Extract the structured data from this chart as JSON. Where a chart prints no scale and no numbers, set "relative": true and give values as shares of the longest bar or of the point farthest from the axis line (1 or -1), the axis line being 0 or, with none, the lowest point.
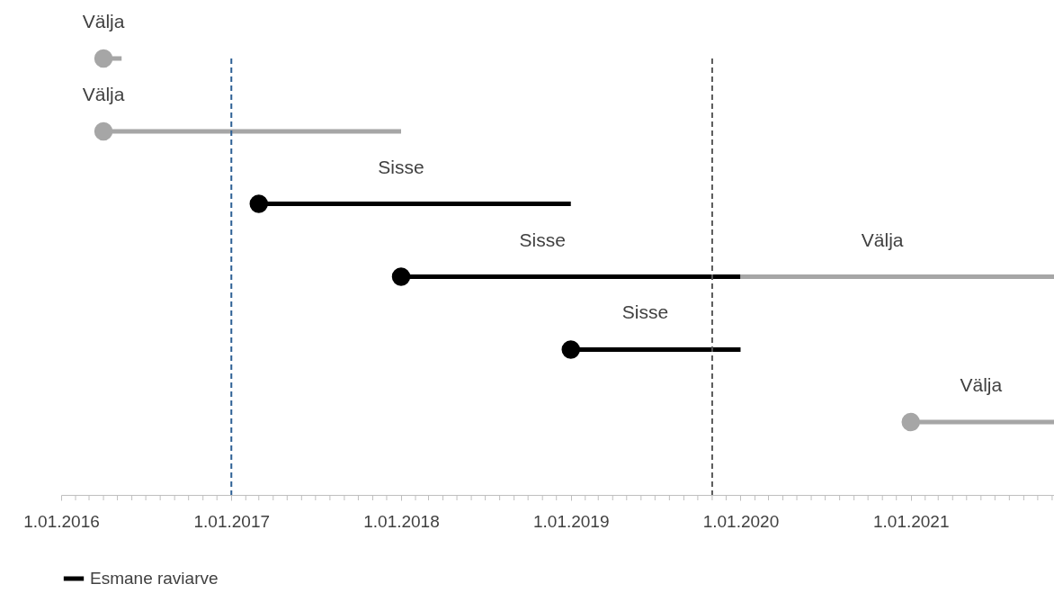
{
  "chart_data": {
    "type": "line",
    "relative": true,
    "xlim": [
      "2016-01-01",
      "2021-11-05"
    ],
    "xticks": [
      {
        "value": "2016-01-01",
        "label": "1.01.2016"
      },
      {
        "value": "2017-01-01",
        "label": "1.01.2017"
      },
      {
        "value": "2018-01-01",
        "label": "1.01.2018"
      },
      {
        "value": "2019-01-01",
        "label": "1.01.2019"
      },
      {
        "value": "2020-01-01",
        "label": "1.01.2020"
      },
      {
        "value": "2021-01-01",
        "label": "1.01.2021"
      },
      {
        "value": "2016-02-01",
        "label": null
      },
      {
        "value": "2016-03-01",
        "label": null
      },
      {
        "value": "2016-04-01",
        "label": null
      },
      {
        "value": "2016-05-01",
        "label": null
      },
      {
        "value": "2016-06-01",
        "label": null
      },
      {
        "value": "2016-07-01",
        "label": null
      },
      {
        "value": "2016-08-01",
        "label": null
      },
      {
        "value": "2016-09-01",
        "label": null
      },
      {
        "value": "2016-10-01",
        "label": null
      },
      {
        "value": "2016-11-01",
        "label": null
      },
      {
        "value": "2016-12-01",
        "label": null
      },
      {
        "value": "2017-02-01",
        "label": null
      },
      {
        "value": "2017-03-01",
        "label": null
      },
      {
        "value": "2017-04-01",
        "label": null
      },
      {
        "value": "2017-05-01",
        "label": null
      },
      {
        "value": "2017-06-01",
        "label": null
      },
      {
        "value": "2017-07-01",
        "label": null
      },
      {
        "value": "2017-08-01",
        "label": null
      },
      {
        "value": "2017-09-01",
        "label": null
      },
      {
        "value": "2017-10-01",
        "label": null
      },
      {
        "value": "2017-11-01",
        "label": null
      },
      {
        "value": "2017-12-01",
        "label": null
      },
      {
        "value": "2018-02-01",
        "label": null
      },
      {
        "value": "2018-03-01",
        "label": null
      },
      {
        "value": "2018-04-01",
        "label": null
      },
      {
        "value": "2018-05-01",
        "label": null
      },
      {
        "value": "2018-06-01",
        "label": null
      },
      {
        "value": "2018-07-01",
        "label": null
      },
      {
        "value": "2018-08-01",
        "label": null
      },
      {
        "value": "2018-09-01",
        "label": null
      },
      {
        "value": "2018-10-01",
        "label": null
      },
      {
        "value": "2018-11-01",
        "label": null
      },
      {
        "value": "2018-12-01",
        "label": null
      },
      {
        "value": "2019-02-01",
        "label": null
      },
      {
        "value": "2019-03-01",
        "label": null
      },
      {
        "value": "2019-04-01",
        "label": null
      },
      {
        "value": "2019-05-01",
        "label": null
      },
      {
        "value": "2019-06-01",
        "label": null
      },
      {
        "value": "2019-07-01",
        "label": null
      },
      {
        "value": "2019-08-01",
        "label": null
      },
      {
        "value": "2019-09-01",
        "label": null
      },
      {
        "value": "2019-10-01",
        "label": null
      },
      {
        "value": "2019-11-01",
        "label": null
      },
      {
        "value": "2019-12-01",
        "label": null
      },
      {
        "value": "2020-02-01",
        "label": null
      },
      {
        "value": "2020-03-01",
        "label": null
      },
      {
        "value": "2020-04-01",
        "label": null
      },
      {
        "value": "2020-05-01",
        "label": null
      },
      {
        "value": "2020-06-01",
        "label": null
      },
      {
        "value": "2020-07-01",
        "label": null
      },
      {
        "value": "2020-08-01",
        "label": null
      },
      {
        "value": "2020-09-01",
        "label": null
      },
      {
        "value": "2020-10-01",
        "label": null
      },
      {
        "value": "2020-11-01",
        "label": null
      },
      {
        "value": "2020-12-01",
        "label": null
      },
      {
        "value": "2021-02-01",
        "label": null
      },
      {
        "value": "2021-03-01",
        "label": null
      },
      {
        "value": "2021-04-01",
        "label": null
      },
      {
        "value": "2021-05-01",
        "label": null
      },
      {
        "value": "2021-06-01",
        "label": null
      },
      {
        "value": "2021-07-01",
        "label": null
      },
      {
        "value": "2021-08-01",
        "label": null
      },
      {
        "value": "2021-09-01",
        "label": null
      },
      {
        "value": "2021-10-01",
        "label": null
      },
      {
        "value": "2021-11-01",
        "label": null
      }
    ],
    "tick_labels": "x",
    "grid": false,
    "legend": "bottom",
    "series": [
      {
        "color": "#a6a6a6",
        "x": [
          "2016-04-01",
          "2016-05-10"
        ],
        "values": [
          1,
          1
        ]
      },
      {
        "color": "#a6a6a6",
        "x": [
          "2016-04-01",
          "2018-01-01"
        ],
        "values": [
          0.833,
          0.833
        ]
      },
      {
        "name": "Esmane raviarve",
        "color": "#000000",
        "x": [
          "2017-03-01",
          "2019-01-01"
        ],
        "values": [
          0.667,
          0.667
        ]
      },
      {
        "color": "#000000",
        "x": [
          "2018-01-01",
          "2020-01-01"
        ],
        "values": [
          0.5,
          0.5
        ]
      },
      {
        "color": "#a6a6a6",
        "x": [
          "2020-01-01",
          "2021-11-05"
        ],
        "values": [
          0.5,
          0.5
        ]
      },
      {
        "color": "#000000",
        "x": [
          "2019-01-01",
          "2020-01-01"
        ],
        "values": [
          0.333,
          0.333
        ]
      },
      {
        "color": "#a6a6a6",
        "x": [
          "2021-01-01",
          "2021-11-05"
        ],
        "values": [
          0.167,
          0.167
        ]
      },
      {
        "type": "scatter",
        "marker": "circle",
        "color": "#000000",
        "x": [
          "2017-03-01",
          "2018-01-01",
          "2019-01-01"
        ],
        "values": [
          0.667,
          0.5,
          0.333
        ]
      },
      {
        "type": "scatter",
        "marker": "circle",
        "color": "#a6a6a6",
        "x": [
          "2016-04-01",
          "2016-04-01",
          "2021-01-01"
        ],
        "values": [
          1,
          0.833,
          0.167
        ]
      }
    ],
    "ref_lines": [
      {
        "axis": "x",
        "value": "2017-01-01",
        "color": "#2e6095",
        "line_style": "dashed"
      },
      {
        "axis": "x",
        "value": "2019-11-01",
        "color": "#595959",
        "line_style": "dashed"
      }
    ],
    "annotations": [
      {
        "text": "Välja",
        "x": "2016-04-01",
        "y": 1
      },
      {
        "text": "Välja",
        "x": "2016-04-01",
        "y": 0.833
      },
      {
        "text": "Sisse",
        "x": "2018-01-01",
        "y": 0.667
      },
      {
        "text": "Sisse",
        "x": "2018-11-01",
        "y": 0.5
      },
      {
        "text": "Välja",
        "x": "2020-11-01",
        "y": 0.5
      },
      {
        "text": "Sisse",
        "x": "2019-06-10",
        "y": 0.333
      },
      {
        "text": "Välja",
        "x": "2021-06-01",
        "y": 0.167
      }
    ]
  }
}
